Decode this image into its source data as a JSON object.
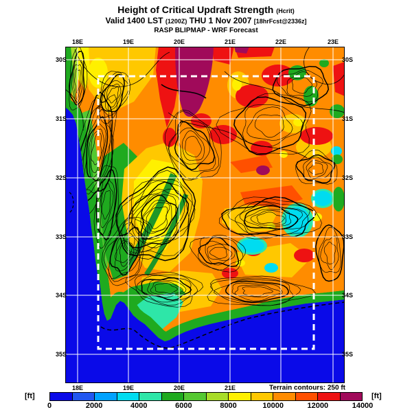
{
  "header": {
    "title": "Height of Critical Updraft Strength",
    "title_suffix": "(Hcrit)",
    "valid_prefix": "Valid 1400 LST",
    "valid_zulu": "(1200Z)",
    "valid_date": "THU 1 Nov 2007",
    "valid_fcst": "[18hrFcst@2336z]",
    "model_line": "RASP BLIPMAP - WRF Forecast"
  },
  "map": {
    "lon_labels": [
      "18E",
      "19E",
      "20E",
      "21E",
      "22E",
      "23E"
    ],
    "lat_labels": [
      "30S",
      "31S",
      "32S",
      "33S",
      "34S",
      "35S"
    ],
    "bottom_lon_labels": [
      "18E",
      "19E",
      "20E",
      "21E"
    ],
    "note": "Terrain contours: 250 ft"
  },
  "colorbar": {
    "unit_left": "[ft]",
    "unit_right": "[ft]",
    "tick_labels": [
      "0",
      "2000",
      "4000",
      "6000",
      "8000",
      "10000",
      "12000",
      "14000"
    ],
    "segment_colors": [
      "#0A0AE8",
      "#2257F0",
      "#00A2FF",
      "#00DCF0",
      "#2EE6A8",
      "#1FAA1F",
      "#55C832",
      "#A8DC28",
      "#FFF000",
      "#FFC800",
      "#FF8C00",
      "#FF5000",
      "#EE1212",
      "#A00A5A"
    ]
  },
  "extra_colors": {
    "ocean": "#0A0AE8",
    "ridge_green": "#1E9628",
    "grid_white": "#FFFFFF",
    "contour_black": "#000000"
  },
  "chart_data": {
    "type": "heatmap",
    "title": "Height of Critical Updraft Strength (Hcrit)",
    "x_ticks": [
      "18E",
      "19E",
      "20E",
      "21E",
      "22E",
      "23E"
    ],
    "y_ticks": [
      "30S",
      "31S",
      "32S",
      "33S",
      "34S",
      "35S"
    ],
    "colorbar_unit": "ft",
    "colorbar_min": 0,
    "colorbar_max": 14000,
    "colorbar_tick_values": [
      0,
      2000,
      4000,
      6000,
      8000,
      10000,
      12000,
      14000
    ],
    "annotations": [
      "Terrain contours: 250 ft"
    ]
  }
}
